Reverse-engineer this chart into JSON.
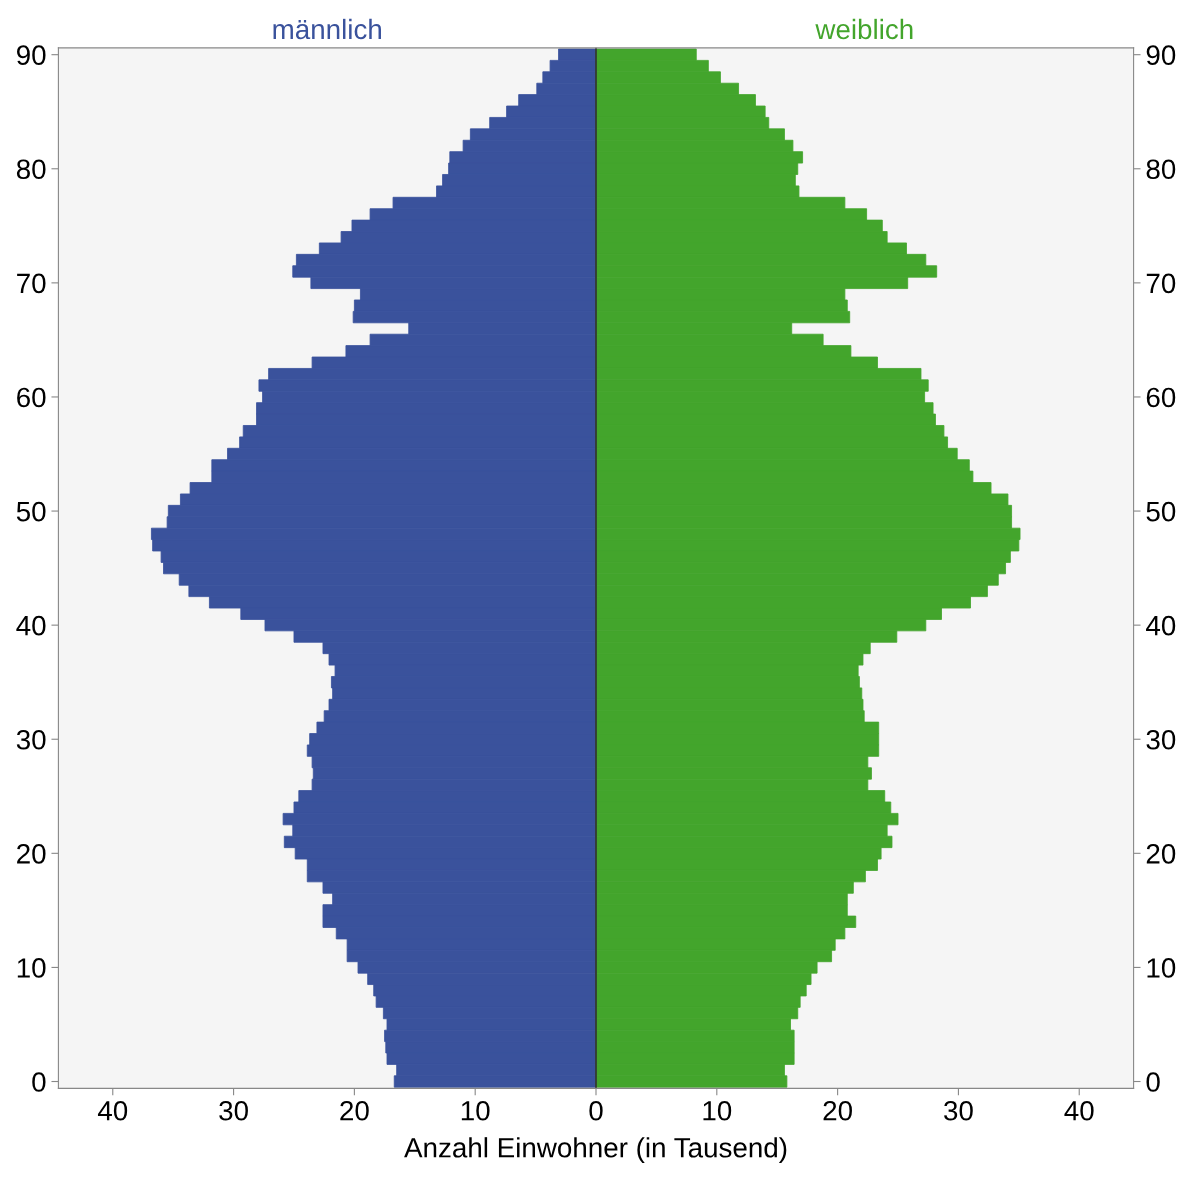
{
  "chart_data": {
    "type": "bar",
    "orientation": "horizontal",
    "xlabel": "Anzahl Einwohner (in Tausend)",
    "categories": [
      "90",
      null,
      null,
      null,
      null,
      null,
      null,
      null,
      null,
      null,
      "80",
      null,
      null,
      null,
      null,
      null,
      null,
      null,
      null,
      null,
      "70",
      null,
      null,
      null,
      null,
      null,
      null,
      null,
      null,
      null,
      "60",
      null,
      null,
      null,
      null,
      null,
      null,
      null,
      null,
      null,
      "50",
      null,
      null,
      null,
      null,
      null,
      null,
      null,
      null,
      null,
      "40",
      null,
      null,
      null,
      null,
      null,
      null,
      null,
      null,
      null,
      "30",
      null,
      null,
      null,
      null,
      null,
      null,
      null,
      null,
      null,
      "20",
      null,
      null,
      null,
      null,
      null,
      null,
      null,
      null,
      null,
      "10",
      null,
      null,
      null,
      null,
      null,
      null,
      null,
      null,
      null,
      "0"
    ],
    "series": [
      {
        "name": "männlich",
        "color": "#3a529c",
        "values": [
          -3.1,
          -3.8,
          -4.4,
          -4.9,
          -6.4,
          -7.4,
          -8.8,
          -10.4,
          -11.0,
          -12.1,
          -12.2,
          -12.7,
          -13.2,
          -16.8,
          -18.7,
          -20.2,
          -21.1,
          -22.9,
          -24.8,
          -25.1,
          -23.6,
          -19.5,
          -20.0,
          -20.1,
          -15.5,
          -18.7,
          -20.7,
          -23.5,
          -27.1,
          -27.9,
          -27.6,
          -28.1,
          -28.1,
          -29.2,
          -29.5,
          -30.5,
          -31.8,
          -31.8,
          -33.6,
          -34.4,
          -35.4,
          -35.5,
          -36.8,
          -36.7,
          -36.0,
          -35.8,
          -34.5,
          -33.7,
          -32.0,
          -29.4,
          -27.4,
          -25.0,
          -22.6,
          -22.1,
          -21.6,
          -21.9,
          -21.8,
          -22.1,
          -22.5,
          -23.1,
          -23.7,
          -23.9,
          -23.5,
          -23.4,
          -23.5,
          -24.6,
          -25.0,
          -25.9,
          -25.1,
          -25.8,
          -24.9,
          -23.9,
          -23.9,
          -22.6,
          -21.8,
          -22.6,
          -22.6,
          -21.5,
          -20.6,
          -20.6,
          -19.7,
          -18.9,
          -18.4,
          -18.2,
          -17.6,
          -17.3,
          -17.5,
          -17.4,
          -17.3,
          -16.5,
          -16.7
        ]
      },
      {
        "name": "weiblich",
        "color": "#43a52c",
        "values": [
          8.3,
          9.3,
          10.3,
          11.8,
          13.2,
          14.0,
          14.3,
          15.6,
          16.3,
          17.1,
          16.7,
          16.5,
          16.8,
          20.6,
          22.4,
          23.7,
          24.1,
          25.7,
          27.3,
          28.2,
          25.8,
          20.6,
          20.8,
          21.0,
          16.2,
          18.8,
          21.1,
          23.3,
          26.9,
          27.5,
          27.2,
          27.9,
          28.1,
          28.8,
          29.1,
          29.9,
          30.9,
          31.2,
          32.7,
          34.1,
          34.4,
          34.4,
          35.1,
          35.0,
          34.3,
          33.9,
          33.3,
          32.4,
          31.0,
          28.6,
          27.3,
          24.9,
          22.7,
          22.1,
          21.7,
          21.8,
          22.0,
          22.1,
          22.2,
          23.4,
          23.4,
          23.4,
          22.5,
          22.8,
          22.5,
          23.9,
          24.4,
          25.0,
          24.1,
          24.5,
          23.6,
          23.3,
          22.3,
          21.3,
          20.8,
          20.8,
          21.5,
          20.6,
          19.8,
          19.5,
          18.3,
          17.8,
          17.4,
          16.9,
          16.7,
          16.1,
          16.4,
          16.4,
          16.4,
          15.6,
          15.8
        ]
      }
    ],
    "xlim": [
      -44.5,
      44.5
    ],
    "xticks": [
      {
        "value": -40,
        "label": "40"
      },
      {
        "value": -30,
        "label": "30"
      },
      {
        "value": -20,
        "label": "20"
      },
      {
        "value": -10,
        "label": "10"
      },
      0,
      10,
      20,
      30,
      40
    ],
    "ref_lines": [
      {
        "axis": "x",
        "value": 0,
        "color": "#333333"
      }
    ],
    "stacked": true,
    "grid": false,
    "legend": false
  }
}
